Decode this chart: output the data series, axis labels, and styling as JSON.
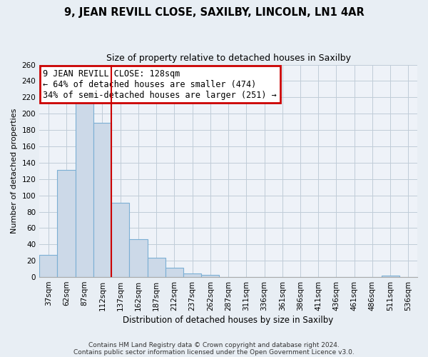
{
  "title": "9, JEAN REVILL CLOSE, SAXILBY, LINCOLN, LN1 4AR",
  "subtitle": "Size of property relative to detached houses in Saxilby",
  "xlabel": "Distribution of detached houses by size in Saxilby",
  "ylabel": "Number of detached properties",
  "footer_line1": "Contains HM Land Registry data © Crown copyright and database right 2024.",
  "footer_line2": "Contains public sector information licensed under the Open Government Licence v3.0.",
  "bar_labels": [
    "37sqm",
    "62sqm",
    "87sqm",
    "112sqm",
    "137sqm",
    "162sqm",
    "187sqm",
    "212sqm",
    "237sqm",
    "262sqm",
    "287sqm",
    "311sqm",
    "336sqm",
    "361sqm",
    "386sqm",
    "411sqm",
    "436sqm",
    "461sqm",
    "486sqm",
    "511sqm",
    "536sqm"
  ],
  "bar_values": [
    27,
    131,
    214,
    189,
    91,
    46,
    24,
    11,
    4,
    3,
    0,
    0,
    0,
    0,
    0,
    0,
    0,
    0,
    0,
    2,
    0
  ],
  "bar_color": "#ccd9e8",
  "bar_edge_color": "#7bafd4",
  "ylim": [
    0,
    260
  ],
  "yticks": [
    0,
    20,
    40,
    60,
    80,
    100,
    120,
    140,
    160,
    180,
    200,
    220,
    240,
    260
  ],
  "vline_color": "#cc0000",
  "annotation_title": "9 JEAN REVILL CLOSE: 128sqm",
  "annotation_line2": "← 64% of detached houses are smaller (474)",
  "annotation_line3": "34% of semi-detached houses are larger (251) →",
  "annotation_box_edge_color": "#cc0000",
  "bg_color": "#e8eef4",
  "plot_bg_color": "#eef2f8",
  "grid_color": "#c0ccd8",
  "title_fontsize": 10.5,
  "subtitle_fontsize": 9,
  "ylabel_fontsize": 8,
  "xlabel_fontsize": 8.5,
  "tick_fontsize": 7.5,
  "ann_fontsize": 8.5,
  "footer_fontsize": 6.5
}
